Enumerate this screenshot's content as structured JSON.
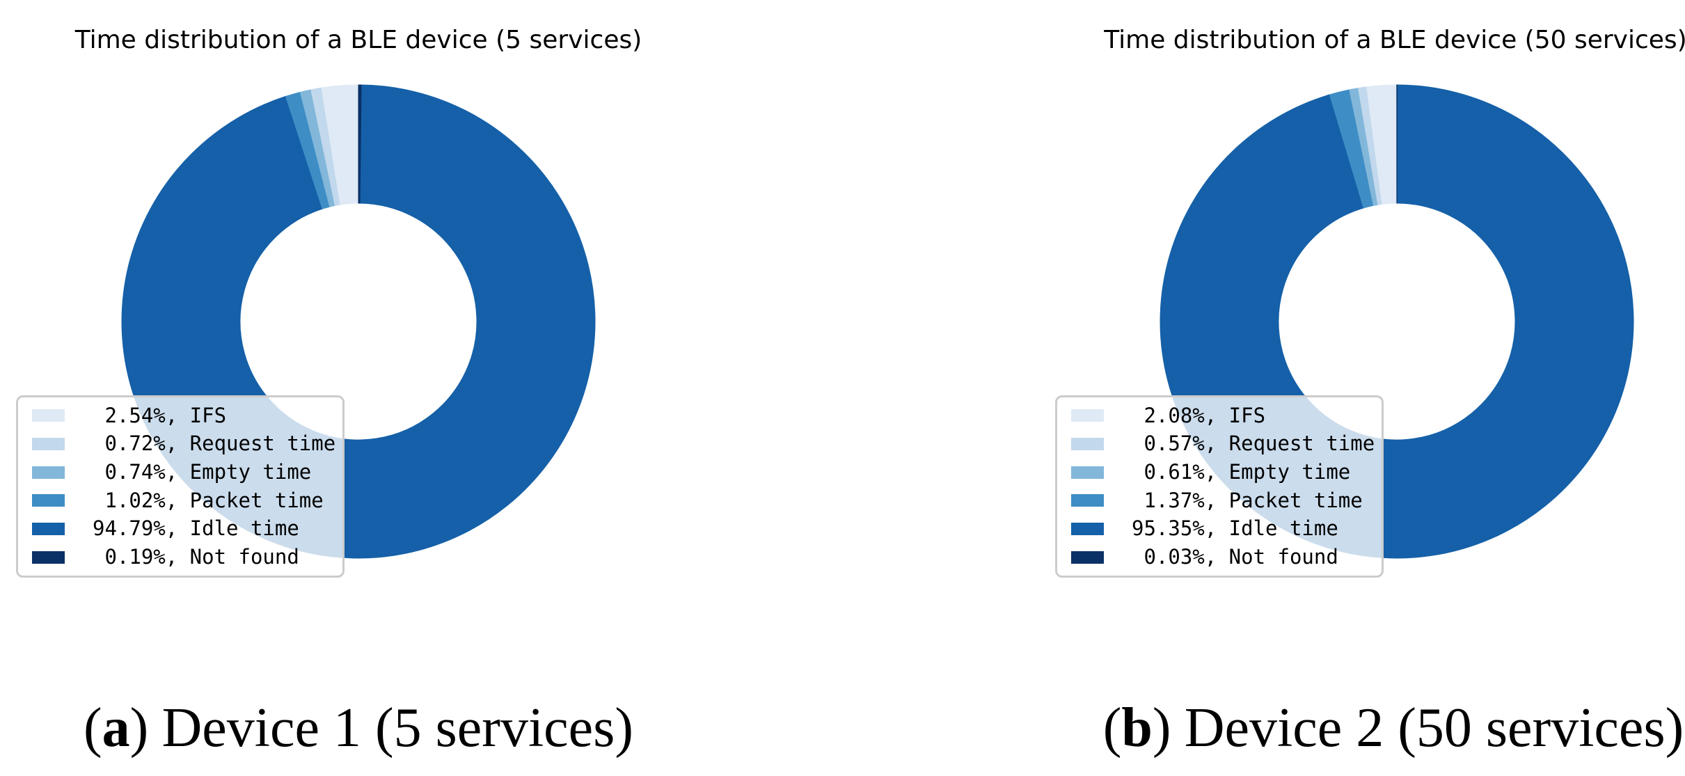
{
  "page": {
    "background": "#ffffff"
  },
  "chart_data": [
    {
      "type": "pie",
      "variant": "donut",
      "title": "Time distribution of a BLE device (5 services)",
      "labels": [
        "IFS",
        "Request time",
        "Empty time",
        "Packet time",
        "Idle time",
        "Not found"
      ],
      "values": [
        2.54,
        0.72,
        0.74,
        1.02,
        94.79,
        0.19
      ],
      "colors": [
        "#dfeaf6",
        "#c2d8ec",
        "#82b7da",
        "#3e8dc5",
        "#1560a8",
        "#0b3166"
      ],
      "start_angle": 90,
      "direction": "counterclockwise",
      "inner_radius_ratio": 0.5,
      "legend_position": "lower-left",
      "legend_format": {
        "pad": 5,
        "suffix": "%",
        "separator": ", "
      },
      "caption": {
        "open": "(",
        "letter": "a",
        "close": ")",
        "text": "Device 1 (5 services)"
      }
    },
    {
      "type": "pie",
      "variant": "donut",
      "title": "Time distribution of a BLE device (50 services)",
      "labels": [
        "IFS",
        "Request time",
        "Empty time",
        "Packet time",
        "Idle time",
        "Not found"
      ],
      "values": [
        2.08,
        0.57,
        0.61,
        1.37,
        95.35,
        0.03
      ],
      "colors": [
        "#dfeaf6",
        "#c2d8ec",
        "#82b7da",
        "#3e8dc5",
        "#1560a8",
        "#0b3166"
      ],
      "start_angle": 90,
      "direction": "counterclockwise",
      "inner_radius_ratio": 0.5,
      "legend_position": "lower-left",
      "legend_format": {
        "pad": 5,
        "suffix": "%",
        "separator": ", "
      },
      "caption": {
        "open": "(",
        "letter": "b",
        "close": ")",
        "text": "Device 2 (50 services)"
      }
    }
  ]
}
